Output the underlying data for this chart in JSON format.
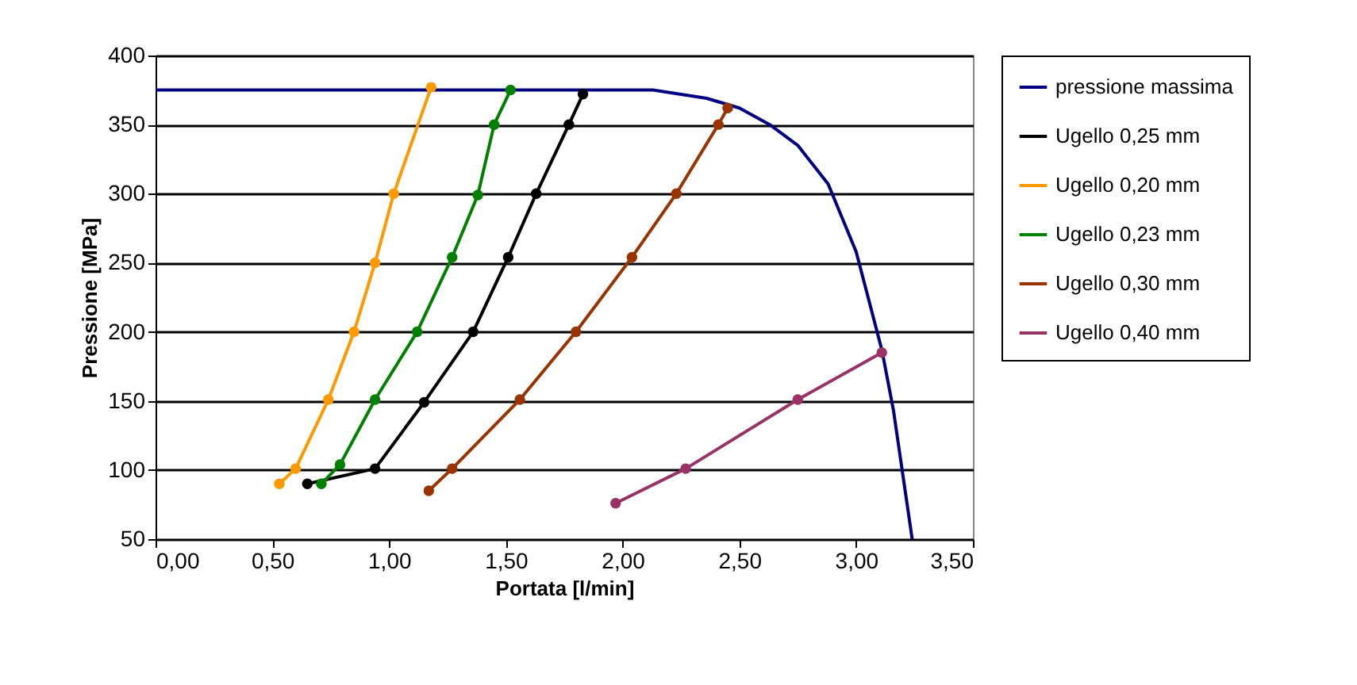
{
  "chart_data": {
    "type": "line",
    "xlabel": "Portata [l/min]",
    "ylabel": "Pressione [MPa]",
    "xlim": [
      0,
      3.5
    ],
    "ylim": [
      50,
      400
    ],
    "xticks": [
      {
        "value": 0,
        "label": "0,00"
      },
      {
        "value": 0.5,
        "label": "0,50"
      },
      {
        "value": 1,
        "label": "1,00"
      },
      {
        "value": 1.5,
        "label": "1,50"
      },
      {
        "value": 2,
        "label": "2,00"
      },
      {
        "value": 2.5,
        "label": "2,50"
      },
      {
        "value": 3,
        "label": "3,00"
      },
      {
        "value": 3.5,
        "label": "3,50"
      }
    ],
    "yticks": [
      50,
      100,
      150,
      200,
      250,
      300,
      350,
      400
    ],
    "grid": "y",
    "legend": "right",
    "line_style": "solid",
    "series": [
      {
        "name": "pressione massima",
        "color": "#000080",
        "marker": "none",
        "x": [
          0,
          2.13,
          2.36,
          2.5,
          2.63,
          2.75,
          2.88,
          3.0,
          3.11,
          3.16,
          3.24
        ],
        "values": [
          375,
          375,
          369,
          362,
          350,
          335,
          307,
          258,
          187,
          143,
          50
        ]
      },
      {
        "name": "Ugello 0,25 mm",
        "color": "#000000",
        "marker": "circle",
        "x": [
          0.65,
          0.94,
          1.15,
          1.36,
          1.51,
          1.63,
          1.77,
          1.83
        ],
        "values": [
          90,
          101,
          149,
          200,
          254,
          300,
          350,
          372
        ]
      },
      {
        "name": "Ugello 0,20 mm",
        "color": "#ff9900",
        "marker": "circle",
        "x": [
          0.53,
          0.6,
          0.74,
          0.85,
          0.94,
          1.02,
          1.18
        ],
        "values": [
          90,
          101,
          151,
          200,
          250,
          300,
          377
        ]
      },
      {
        "name": "Ugello 0,23 mm",
        "color": "#008000",
        "marker": "circle",
        "x": [
          0.71,
          0.79,
          0.94,
          1.12,
          1.27,
          1.38,
          1.45,
          1.52
        ],
        "values": [
          90,
          104,
          151,
          200,
          254,
          299,
          350,
          375
        ]
      },
      {
        "name": "Ugello 0,30 mm",
        "color": "#993300",
        "marker": "circle",
        "x": [
          1.17,
          1.27,
          1.56,
          1.8,
          2.04,
          2.23,
          2.41,
          2.45
        ],
        "values": [
          85,
          101,
          151,
          200,
          254,
          300,
          350,
          362
        ]
      },
      {
        "name": "Ugello 0,40 mm",
        "color": "#993366",
        "marker": "circle",
        "x": [
          1.97,
          2.27,
          2.75,
          3.11
        ],
        "values": [
          76,
          101,
          151,
          185
        ]
      }
    ]
  }
}
